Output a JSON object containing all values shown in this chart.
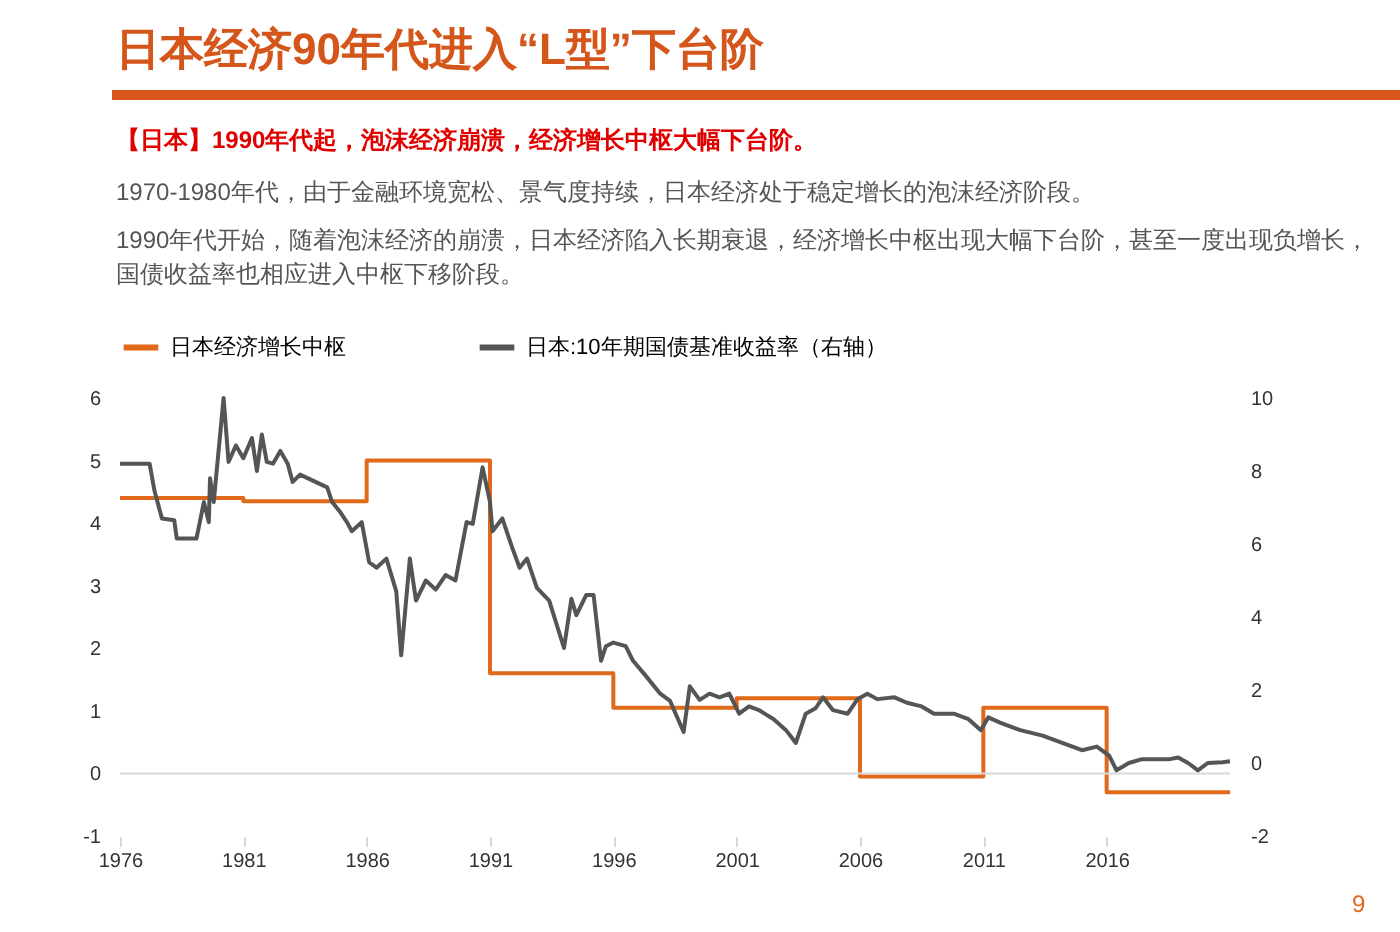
{
  "chart_data": {
    "type": "line",
    "title": "日本经济90年代进入“L型”下台阶",
    "subtitle": "【日本】1990年代起，泡沫经济崩溃，经济增长中枢大幅下台阶。",
    "annotations": [
      "1970-1980年代，由于金融环境宽松、景气度持续，日本经济处于稳定增长的泡沫经济阶段。",
      "1990年代开始，随着泡沫经济的崩溃，日本经济陷入长期衰退，经济增长中枢出现大幅下台阶，甚至一度出现负增长，国债收益率也相应进入中枢下移阶段。",
      "9"
    ],
    "xlim": [
      1976,
      2021
    ],
    "xticks": [
      1976,
      1981,
      1986,
      1991,
      1996,
      2001,
      2006,
      2011,
      2016
    ],
    "ylim": [
      -1,
      6
    ],
    "yticks": [
      -1,
      0,
      1,
      2,
      3,
      4,
      5,
      6
    ],
    "y2lim": [
      -2,
      10
    ],
    "y2ticks": [
      -2,
      0,
      2,
      4,
      6,
      8,
      10
    ],
    "legend": "top",
    "ref_lines": [
      {
        "axis": "y",
        "value": 0,
        "color": "#d9d9d9"
      }
    ],
    "series": [
      {
        "name": "日本经济增长中枢",
        "type": "step",
        "color": "#e0691a",
        "x": [
          1976,
          1981,
          1986,
          1991,
          1996,
          2001,
          2006,
          2011,
          2016,
          2021
        ],
        "values": [
          4.4,
          4.35,
          5.0,
          1.6,
          1.05,
          1.2,
          -0.05,
          1.05,
          -0.3,
          -0.3
        ]
      },
      {
        "name": "日本:10年期国债基准收益率（右轴）",
        "type": "line",
        "axis": "y2",
        "color": "#555555",
        "x": [
          1976,
          1977.2,
          1977.4,
          1977.7,
          1978.2,
          1978.3,
          1979.1,
          1979.4,
          1979.6,
          1979.65,
          1979.8,
          1980.2,
          1980.4,
          1980.7,
          1981.0,
          1981.35,
          1981.55,
          1981.75,
          1981.95,
          1982.2,
          1982.5,
          1982.8,
          1983.0,
          1983.3,
          1984.4,
          1984.6,
          1984.9,
          1985.2,
          1985.4,
          1985.8,
          1986.1,
          1986.4,
          1986.8,
          1987.2,
          1987.4,
          1987.75,
          1988.0,
          1988.4,
          1988.8,
          1989.2,
          1989.6,
          1990.05,
          1990.3,
          1990.7,
          1991.0,
          1991.1,
          1991.5,
          1991.9,
          1992.2,
          1992.5,
          1992.9,
          1993.4,
          1994.0,
          1994.3,
          1994.5,
          1994.9,
          1995.2,
          1995.5,
          1995.7,
          1996.0,
          1996.5,
          1996.8,
          1997.3,
          1997.9,
          1998.3,
          1998.85,
          1999.1,
          1999.5,
          1999.9,
          2000.3,
          2000.7,
          2001.1,
          2001.5,
          2001.9,
          2002.5,
          2003.0,
          2003.4,
          2003.8,
          2004.2,
          2004.5,
          2004.9,
          2005.5,
          2005.9,
          2006.3,
          2006.7,
          2007.4,
          2007.9,
          2008.5,
          2009.0,
          2009.8,
          2010.4,
          2010.9,
          2011.2,
          2011.7,
          2012.5,
          2013.4,
          2014.2,
          2015.0,
          2015.6,
          2016.1,
          2016.4,
          2016.9,
          2017.4,
          2018.5,
          2018.9,
          2019.3,
          2019.7,
          2020.1,
          2020.7,
          2021.0
        ],
        "values": [
          8.2,
          8.2,
          7.45,
          6.7,
          6.65,
          6.15,
          6.15,
          7.15,
          6.6,
          7.8,
          7.15,
          10.0,
          8.25,
          8.7,
          8.35,
          8.9,
          8.0,
          9.0,
          8.25,
          8.2,
          8.55,
          8.2,
          7.7,
          7.9,
          7.55,
          7.15,
          6.9,
          6.6,
          6.35,
          6.6,
          5.5,
          5.35,
          5.6,
          4.7,
          2.95,
          5.6,
          4.45,
          5.0,
          4.75,
          5.15,
          5.0,
          6.6,
          6.55,
          8.1,
          7.15,
          6.35,
          6.7,
          5.9,
          5.35,
          5.6,
          4.8,
          4.45,
          3.15,
          4.5,
          4.05,
          4.6,
          4.6,
          2.8,
          3.2,
          3.3,
          3.2,
          2.8,
          2.4,
          1.9,
          1.7,
          0.85,
          2.1,
          1.73,
          1.9,
          1.8,
          1.9,
          1.35,
          1.55,
          1.45,
          1.2,
          0.9,
          0.55,
          1.35,
          1.5,
          1.8,
          1.45,
          1.35,
          1.75,
          1.9,
          1.75,
          1.8,
          1.65,
          1.55,
          1.35,
          1.35,
          1.2,
          0.9,
          1.25,
          1.1,
          0.9,
          0.75,
          0.55,
          0.35,
          0.45,
          0.2,
          -0.2,
          0.0,
          0.1,
          0.1,
          0.15,
          0.0,
          -0.2,
          0.0,
          0.02,
          0.05
        ]
      }
    ]
  }
}
